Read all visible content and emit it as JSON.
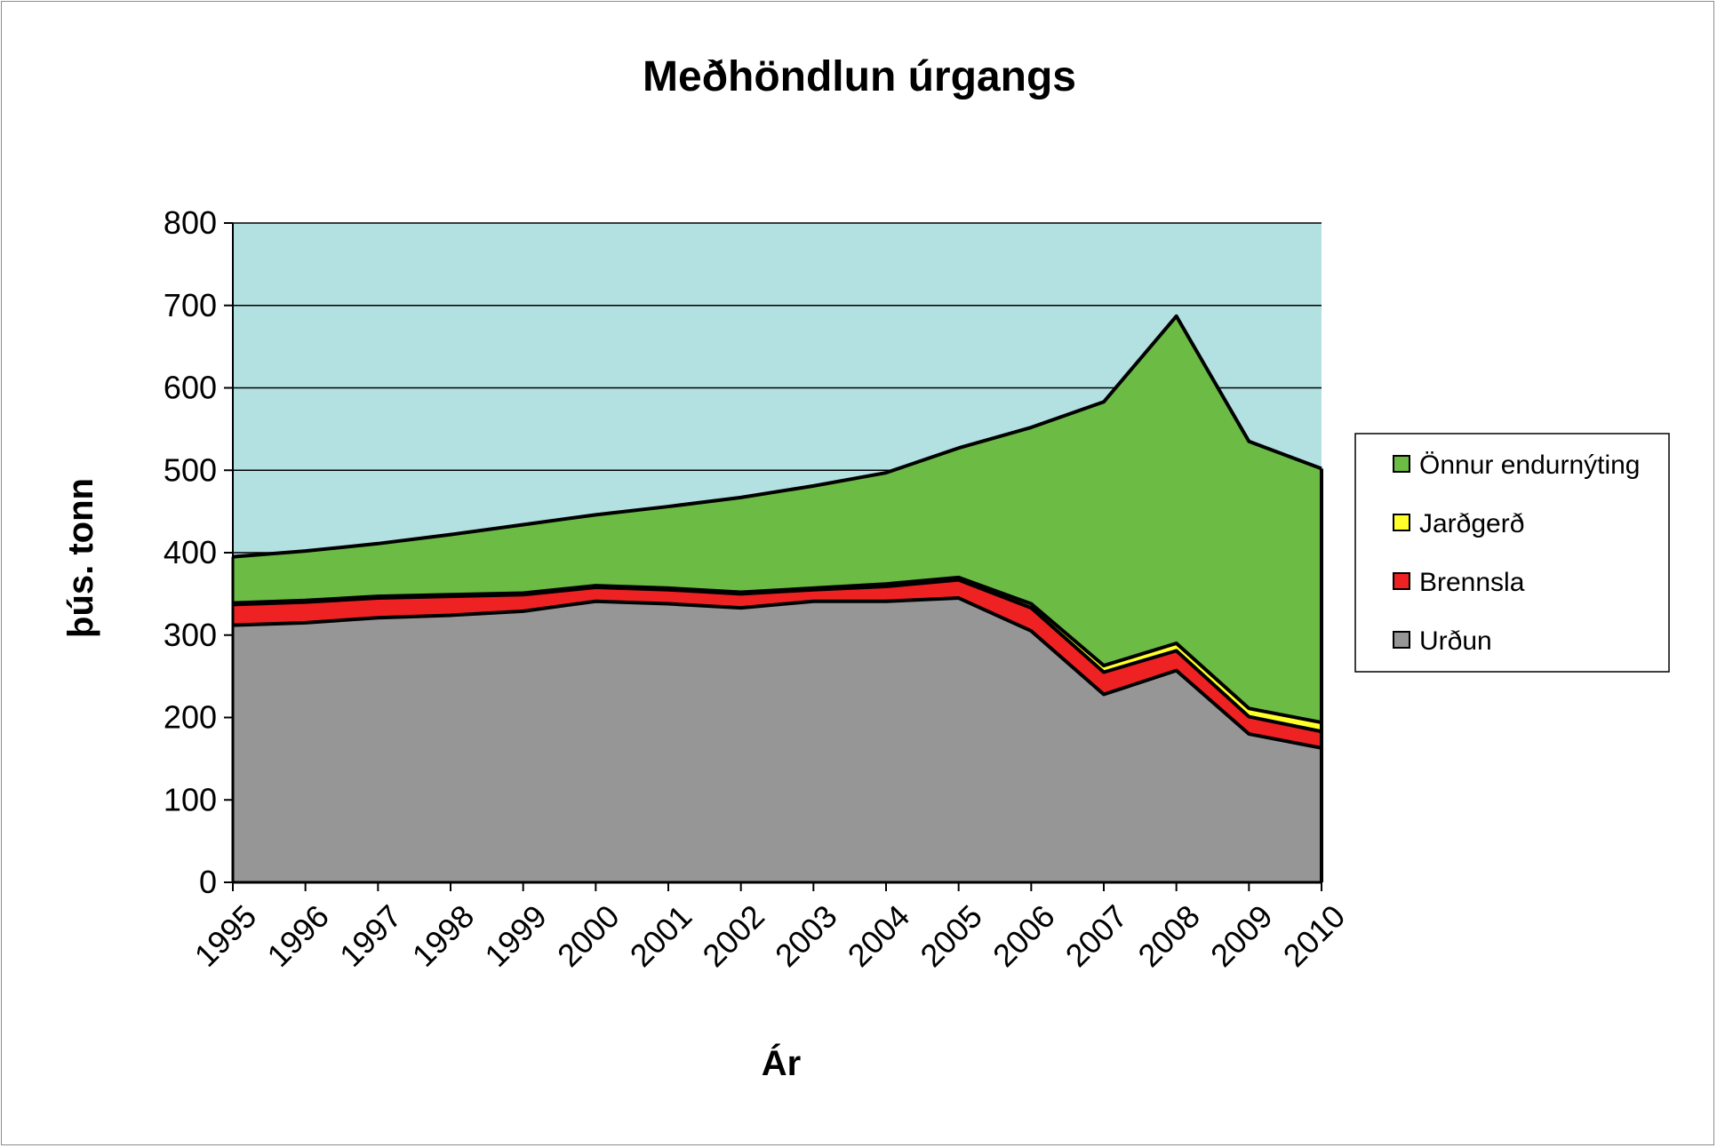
{
  "chart_data": {
    "type": "area",
    "stacked": true,
    "title": "Meðhöndlun úrgangs",
    "xlabel": "Ár",
    "ylabel": "þús. tonn",
    "ylim": [
      0,
      800
    ],
    "yticks": [
      "0",
      "100",
      "200",
      "300",
      "400",
      "500",
      "600",
      "700",
      "800"
    ],
    "x": [
      "1995",
      "1996",
      "1997",
      "1998",
      "1999",
      "2000",
      "2001",
      "2002",
      "2003",
      "2004",
      "2005",
      "2006",
      "2007",
      "2008",
      "2009",
      "2010"
    ],
    "series": [
      {
        "name": "Urðun",
        "color": "#969696",
        "values": [
          312,
          315,
          321,
          324,
          329,
          341,
          338,
          333,
          341,
          341,
          345,
          305,
          228,
          257,
          180,
          163
        ]
      },
      {
        "name": "Brennsla",
        "color": "#ee2222",
        "values": [
          25,
          25,
          24,
          23,
          20,
          17,
          17,
          17,
          14,
          18,
          22,
          28,
          27,
          24,
          21,
          20
        ]
      },
      {
        "name": "Jarðgerð",
        "color": "#ffff2a",
        "values": [
          2,
          2,
          2,
          2,
          2,
          2,
          2,
          2,
          2,
          3,
          3,
          5,
          8,
          9,
          10,
          11
        ]
      },
      {
        "name": "Önnur endurnýting",
        "color": "#6cbb45",
        "values": [
          56,
          60,
          64,
          73,
          83,
          86,
          99,
          115,
          124,
          135,
          157,
          214,
          320,
          397,
          324,
          308
        ]
      }
    ],
    "legend_order": [
      "Önnur endurnýting",
      "Jarðgerð",
      "Brennsla",
      "Urðun"
    ],
    "legend_position": "right",
    "plot_background": "#b3e0e0",
    "gridlines": true
  }
}
